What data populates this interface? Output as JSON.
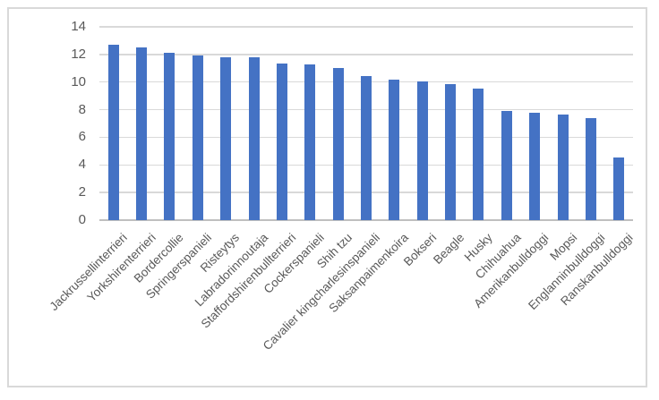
{
  "chart_data": {
    "type": "bar",
    "title": "",
    "xlabel": "",
    "ylabel": "",
    "categories": [
      "Jackrussellinterrieri",
      "Yorkshirenterrieri",
      "Bordercollie",
      "Springerspanieli",
      "Risteytys",
      "Labradorinnoutaja",
      "Staffordshirenbullterrieri",
      "Cockerspanieli",
      "Shih tzu",
      "Cavalier kingcharlesinspanieli",
      "Saksanpaimenkoira",
      "Bokseri",
      "Beagle",
      "Husky",
      "Chihuahua",
      "Amerikanbulldoggi",
      "Mopsi",
      "Englanninbulldoggi",
      "Ranskanbulldoggi"
    ],
    "values": [
      12.72,
      12.54,
      12.1,
      11.92,
      11.82,
      11.77,
      11.33,
      11.31,
      11.05,
      10.45,
      10.16,
      10.04,
      9.85,
      9.53,
      7.91,
      7.79,
      7.65,
      7.39,
      4.53
    ],
    "ylim": [
      0,
      14
    ],
    "yticks": [
      0,
      2,
      4,
      6,
      8,
      10,
      12,
      14
    ],
    "grid": true,
    "legend": "none",
    "x_label_rotation_deg": 45,
    "bar_color": "#4472C4",
    "gridline_color": "#D9D9D9",
    "axis_line_color": "#BFBFBF",
    "tick_label_color": "#595959",
    "border_color": "#D9D9D9",
    "background": "#FFFFFF"
  }
}
